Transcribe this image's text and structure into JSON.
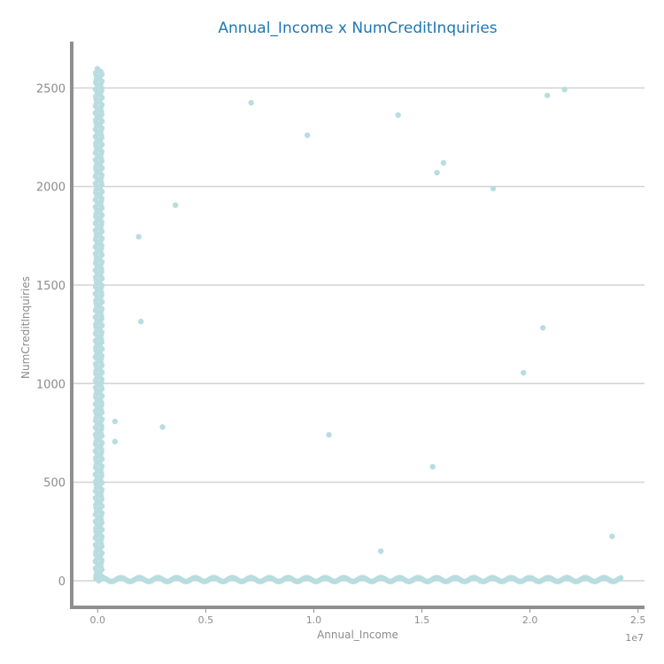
{
  "chart_data": {
    "type": "scatter",
    "title": "Annual_Income x NumCreditInquiries",
    "xlabel": "Annual_Income",
    "ylabel": "NumCreditInquiries",
    "x_offset_label": "1e7",
    "xlim": [
      -0.12,
      2.53
    ],
    "ylim": [
      -135,
      2735
    ],
    "xticks": [
      0.0,
      0.5,
      1.0,
      1.5,
      2.0,
      2.5
    ],
    "xtick_labels": [
      "0.0",
      "0.5",
      "1.0",
      "1.5",
      "2.0",
      "2.5"
    ],
    "yticks": [
      0,
      500,
      1000,
      1500,
      2000,
      2500
    ],
    "ytick_labels": [
      "0",
      "500",
      "1000",
      "1500",
      "2000",
      "2500"
    ],
    "x_units": "1e7",
    "grid": "horizontal",
    "marker_color": "#b8dde0",
    "title_color": "#1f77b4",
    "series": [
      {
        "points": [
          [
            0.71,
            2425
          ],
          [
            0.97,
            2260
          ],
          [
            1.39,
            2362
          ],
          [
            2.08,
            2462
          ],
          [
            2.16,
            2492
          ],
          [
            1.57,
            2070
          ],
          [
            1.6,
            2120
          ],
          [
            1.83,
            1990
          ],
          [
            0.36,
            1905
          ],
          [
            0.19,
            1745
          ],
          [
            0.2,
            1315
          ],
          [
            2.06,
            1283
          ],
          [
            1.97,
            1055
          ],
          [
            0.08,
            808
          ],
          [
            0.08,
            706
          ],
          [
            0.3,
            780
          ],
          [
            1.07,
            740
          ],
          [
            1.55,
            578
          ],
          [
            1.31,
            150
          ],
          [
            2.38,
            225
          ]
        ],
        "dense_bands": [
          {
            "kind": "vertical",
            "x_range": [
              -0.01,
              0.02
            ],
            "y_range": [
              0,
              2600
            ]
          },
          {
            "kind": "horizontal",
            "x_range": [
              0.0,
              2.42
            ],
            "y_range": [
              -4,
              16
            ]
          }
        ]
      }
    ]
  }
}
